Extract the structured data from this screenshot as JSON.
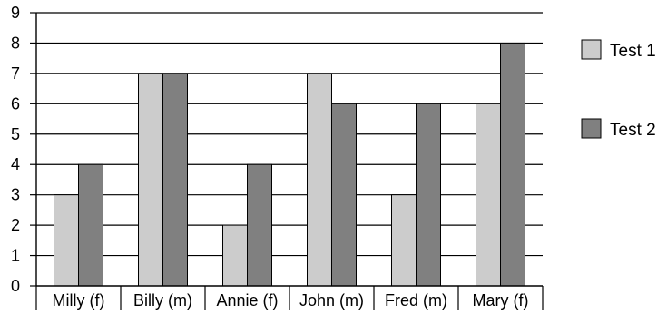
{
  "chart_data": {
    "type": "bar",
    "title": "",
    "xlabel": "",
    "ylabel": "",
    "categories": [
      "Milly (f)",
      "Billy (m)",
      "Annie (f)",
      "John (m)",
      "Fred (m)",
      "Mary (f)"
    ],
    "series": [
      {
        "name": "Test 1",
        "values": [
          3,
          7,
          2,
          7,
          3,
          6
        ],
        "color": "#cccccc"
      },
      {
        "name": "Test 2",
        "values": [
          4,
          7,
          4,
          6,
          6,
          8
        ],
        "color": "#808080"
      }
    ],
    "ylim": [
      0,
      9
    ],
    "yticks": [
      "0",
      "1",
      "2",
      "3",
      "4",
      "5",
      "6",
      "7",
      "8",
      "9"
    ],
    "grid": true,
    "legend": "right"
  }
}
